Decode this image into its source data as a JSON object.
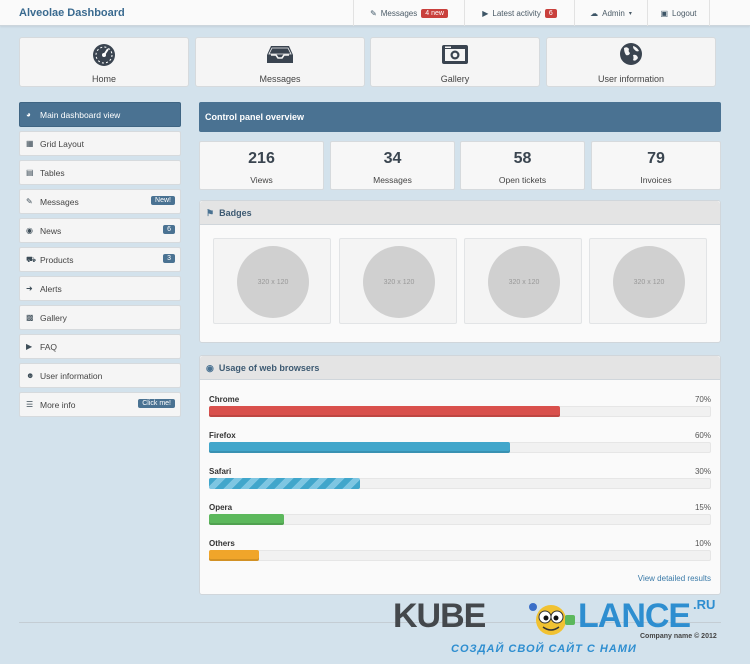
{
  "header": {
    "title": "Alveolae Dashboard",
    "nav": [
      {
        "icon": "chat-icon",
        "label": "Messages",
        "badge": "4 new"
      },
      {
        "icon": "megaphone-icon",
        "label": "Latest activity",
        "badge": "6"
      },
      {
        "icon": "cloud-icon",
        "label": "Admin",
        "caret": "▾"
      },
      {
        "icon": "lock-icon",
        "label": "Logout"
      }
    ]
  },
  "tiles": [
    {
      "icon": "dashboard-icon",
      "label": "Home"
    },
    {
      "icon": "inbox-icon",
      "label": "Messages"
    },
    {
      "icon": "camera-icon",
      "label": "Gallery"
    },
    {
      "icon": "globe-icon",
      "label": "User information"
    }
  ],
  "sidebar": {
    "items": [
      {
        "icon": "dashboard-icon",
        "label": "Main dashboard view",
        "active": true
      },
      {
        "icon": "grid-icon",
        "label": "Grid Layout"
      },
      {
        "icon": "table-icon",
        "label": "Tables"
      },
      {
        "icon": "chat-icon",
        "label": "Messages",
        "badge": "New!"
      },
      {
        "icon": "globe-icon",
        "label": "News",
        "badge": "6"
      },
      {
        "icon": "truck-icon",
        "label": "Products",
        "badge": "3"
      },
      {
        "icon": "bolt-icon",
        "label": "Alerts"
      },
      {
        "icon": "image-icon",
        "label": "Gallery"
      },
      {
        "icon": "megaphone-icon",
        "label": "FAQ"
      },
      {
        "icon": "user-icon",
        "label": "User information"
      },
      {
        "icon": "list-icon",
        "label": "More info",
        "badge": "Click me!"
      }
    ]
  },
  "main": {
    "title": "Control panel overview",
    "stats": [
      {
        "value": "216",
        "label": "Views"
      },
      {
        "value": "34",
        "label": "Messages"
      },
      {
        "value": "58",
        "label": "Open tickets"
      },
      {
        "value": "79",
        "label": "Invoices"
      }
    ],
    "badges_panel": {
      "title": "Badges",
      "thumbnails": [
        "320 x 120",
        "320 x 120",
        "320 x 120",
        "320 x 120"
      ]
    },
    "browsers_panel": {
      "title": "Usage of web browsers",
      "rows": [
        {
          "name": "Chrome",
          "percent": 70,
          "label": "70%",
          "color": "#d9504c",
          "striped": false
        },
        {
          "name": "Firefox",
          "percent": 60,
          "label": "60%",
          "color": "#41a6cb",
          "striped": false
        },
        {
          "name": "Safari",
          "percent": 30,
          "label": "30%",
          "color": "#41a6cb",
          "striped": true
        },
        {
          "name": "Opera",
          "percent": 15,
          "label": "15%",
          "color": "#5cb85c",
          "striped": false
        },
        {
          "name": "Others",
          "percent": 10,
          "label": "10%",
          "color": "#f0a52a",
          "striped": false
        }
      ],
      "link": "View detailed results"
    }
  },
  "watermark": {
    "word1": "KUBE",
    "word2": "LANCE",
    "tld": ".RU",
    "tagline": "СОЗДАЙ СВОЙ САЙТ С НАМИ",
    "copyright": "Company name © 2012"
  }
}
